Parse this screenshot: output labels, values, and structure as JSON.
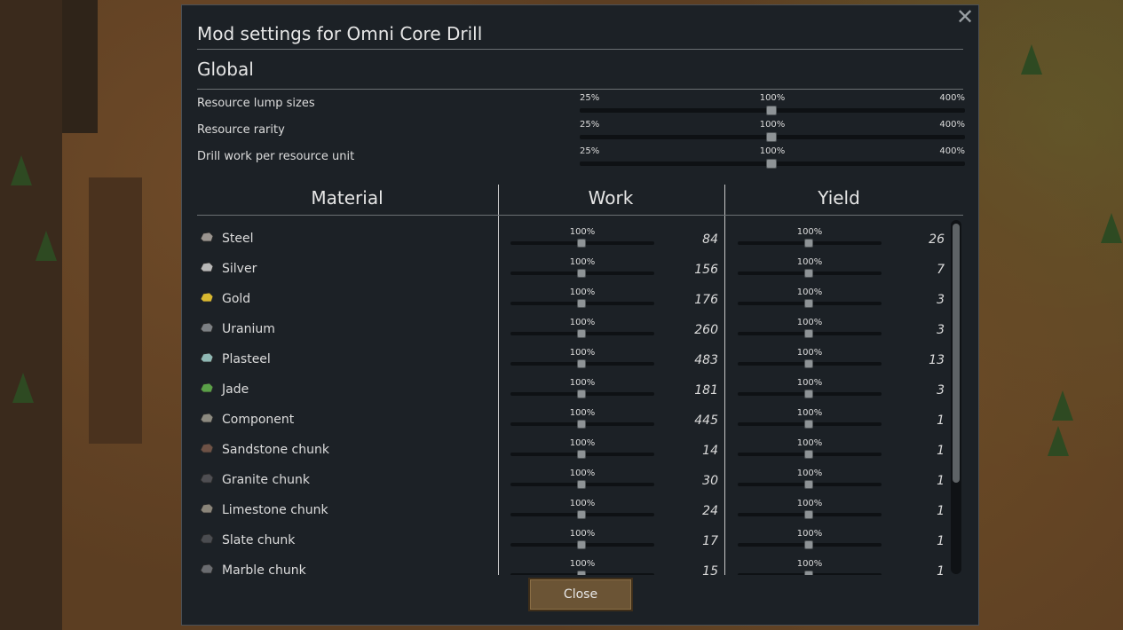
{
  "dialog": {
    "title": "Mod settings for Omni Core Drill",
    "section": "Global",
    "close_label": "Close"
  },
  "global_settings": [
    {
      "label": "Resource lump sizes",
      "min": "25%",
      "mid": "100%",
      "max": "400%",
      "value_percent": 100
    },
    {
      "label": "Resource rarity",
      "min": "25%",
      "mid": "100%",
      "max": "400%",
      "value_percent": 100
    },
    {
      "label": "Drill work per resource unit",
      "min": "25%",
      "mid": "100%",
      "max": "400%",
      "value_percent": 100
    }
  ],
  "table": {
    "headers": {
      "material": "Material",
      "work": "Work",
      "yield": "Yield"
    },
    "rows": [
      {
        "name": "Steel",
        "icon": "steel-icon",
        "work_pct": "100%",
        "work": "84",
        "yield_pct": "100%",
        "yield": "26"
      },
      {
        "name": "Silver",
        "icon": "silver-icon",
        "work_pct": "100%",
        "work": "156",
        "yield_pct": "100%",
        "yield": "7"
      },
      {
        "name": "Gold",
        "icon": "gold-icon",
        "work_pct": "100%",
        "work": "176",
        "yield_pct": "100%",
        "yield": "3"
      },
      {
        "name": "Uranium",
        "icon": "uranium-icon",
        "work_pct": "100%",
        "work": "260",
        "yield_pct": "100%",
        "yield": "3"
      },
      {
        "name": "Plasteel",
        "icon": "plasteel-icon",
        "work_pct": "100%",
        "work": "483",
        "yield_pct": "100%",
        "yield": "13"
      },
      {
        "name": "Jade",
        "icon": "jade-icon",
        "work_pct": "100%",
        "work": "181",
        "yield_pct": "100%",
        "yield": "3"
      },
      {
        "name": "Component",
        "icon": "component-icon",
        "work_pct": "100%",
        "work": "445",
        "yield_pct": "100%",
        "yield": "1"
      },
      {
        "name": "Sandstone chunk",
        "icon": "sandstone-chunk-icon",
        "work_pct": "100%",
        "work": "14",
        "yield_pct": "100%",
        "yield": "1"
      },
      {
        "name": "Granite chunk",
        "icon": "granite-chunk-icon",
        "work_pct": "100%",
        "work": "30",
        "yield_pct": "100%",
        "yield": "1"
      },
      {
        "name": "Limestone chunk",
        "icon": "limestone-chunk-icon",
        "work_pct": "100%",
        "work": "24",
        "yield_pct": "100%",
        "yield": "1"
      },
      {
        "name": "Slate chunk",
        "icon": "slate-chunk-icon",
        "work_pct": "100%",
        "work": "17",
        "yield_pct": "100%",
        "yield": "1"
      },
      {
        "name": "Marble chunk",
        "icon": "marble-chunk-icon",
        "work_pct": "100%",
        "work": "15",
        "yield_pct": "100%",
        "yield": "1"
      }
    ]
  },
  "colors": {
    "dialog_bg": "#1c2126",
    "button_bg": "#6b5435",
    "steel-icon": "#9a9590",
    "silver-icon": "#b8b8b8",
    "gold-icon": "#d8b830",
    "uranium-icon": "#7c8084",
    "plasteel-icon": "#8fb8b4",
    "jade-icon": "#5aa048",
    "component-icon": "#8c8a80",
    "sandstone-chunk-icon": "#6e5246",
    "granite-chunk-icon": "#4e4e52",
    "limestone-chunk-icon": "#8a857a",
    "slate-chunk-icon": "#4a4c50",
    "marble-chunk-icon": "#6a6c70"
  }
}
